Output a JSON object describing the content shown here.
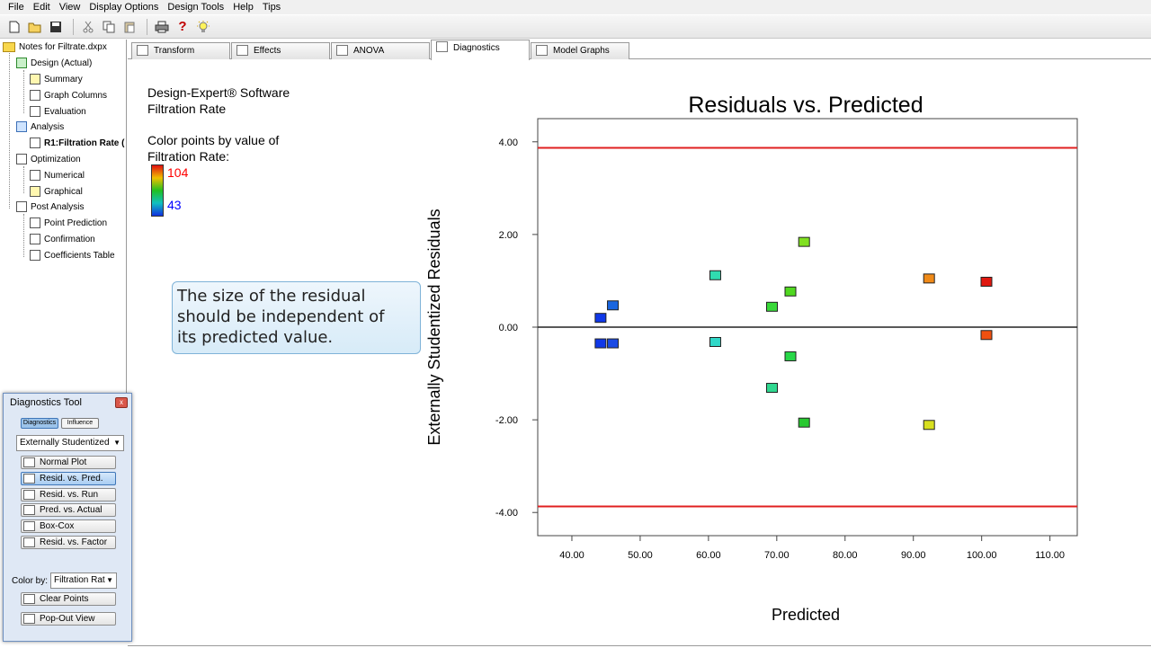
{
  "menu": [
    "File",
    "Edit",
    "View",
    "Display Options",
    "Design Tools",
    "Help",
    "Tips"
  ],
  "toolbar": {
    "icons": [
      "new-file-icon",
      "open-folder-icon",
      "save-icon",
      "cut-icon",
      "copy-icon",
      "paste-icon",
      "print-icon",
      "help-icon",
      "tip-bulb-icon"
    ],
    "help_glyph": "?"
  },
  "tree": {
    "root": "Notes for Filtrate.dxpx",
    "design": "Design (Actual)",
    "summary": "Summary",
    "graph_columns": "Graph Columns",
    "evaluation": "Evaluation",
    "analysis": "Analysis",
    "r1": "R1:Filtration Rate (",
    "optimization": "Optimization",
    "numerical": "Numerical",
    "graphical": "Graphical",
    "post_analysis": "Post Analysis",
    "point_prediction": "Point Prediction",
    "confirmation": "Confirmation",
    "coefficients_table": "Coefficients Table"
  },
  "tabs": [
    "Transform",
    "Effects",
    "ANOVA",
    "Diagnostics",
    "Model Graphs"
  ],
  "active_tab": "Diagnostics",
  "info": {
    "line1": "Design-Expert® Software",
    "line2": "Filtration Rate",
    "line3": "Color points by value of",
    "line4": "Filtration Rate:",
    "legend_high": "104",
    "legend_low": "43"
  },
  "callout": {
    "line1": "The size of the residual",
    "line2": "should be independent of",
    "line3": "its predicted value."
  },
  "diagnostics_tool": {
    "title": "Diagnostics Tool",
    "close_glyph": "x",
    "seg_diagnostics": "Diagnostics",
    "seg_influence": "Influence",
    "residual_type": "Externally Studentized",
    "buttons": [
      "Normal Plot",
      "Resid. vs. Pred.",
      "Resid. vs. Run",
      "Pred. vs. Actual",
      "Box-Cox",
      "Resid. vs. Factor"
    ],
    "selected_button": "Resid. vs. Pred.",
    "color_by_label": "Color by:",
    "color_by_value": "Filtration Rat",
    "clear_points": "Clear Points",
    "pop_out": "Pop-Out View",
    "dropdown_glyph": "▼"
  },
  "chart_data": {
    "type": "scatter",
    "title": "Residuals vs. Predicted",
    "xlabel": "Predicted",
    "ylabel": "Externally Studentized Residuals",
    "xlim": [
      35,
      114
    ],
    "ylim": [
      -4.5,
      4.5
    ],
    "xticks": [
      "40.00",
      "50.00",
      "60.00",
      "70.00",
      "80.00",
      "90.00",
      "100.00",
      "110.00"
    ],
    "yticks": [
      "4.00",
      "2.00",
      "0.00",
      "-2.00",
      "-4.00"
    ],
    "limit_lines": [
      3.87,
      -3.87
    ],
    "limit_color": "#e02020",
    "zero_line": 0,
    "points": [
      {
        "x": 44.2,
        "y": 0.2,
        "color": "#1038e8"
      },
      {
        "x": 44.2,
        "y": -0.35,
        "color": "#1038e8"
      },
      {
        "x": 46.0,
        "y": 0.47,
        "color": "#1a66e0"
      },
      {
        "x": 46.0,
        "y": -0.35,
        "color": "#1a4ae4"
      },
      {
        "x": 61.0,
        "y": 1.12,
        "color": "#30dbb0"
      },
      {
        "x": 61.0,
        "y": -0.32,
        "color": "#30d8c8"
      },
      {
        "x": 69.3,
        "y": 0.44,
        "color": "#38d838"
      },
      {
        "x": 69.3,
        "y": -1.31,
        "color": "#30d890"
      },
      {
        "x": 72.0,
        "y": 0.77,
        "color": "#50d820"
      },
      {
        "x": 72.0,
        "y": -0.63,
        "color": "#28d848"
      },
      {
        "x": 74.0,
        "y": 1.84,
        "color": "#80e020"
      },
      {
        "x": 74.0,
        "y": -2.06,
        "color": "#28c830"
      },
      {
        "x": 92.3,
        "y": 1.05,
        "color": "#f08a18"
      },
      {
        "x": 92.3,
        "y": -2.11,
        "color": "#d8e020"
      },
      {
        "x": 100.7,
        "y": 0.98,
        "color": "#e01810"
      },
      {
        "x": 100.7,
        "y": -0.17,
        "color": "#f05010"
      }
    ]
  }
}
